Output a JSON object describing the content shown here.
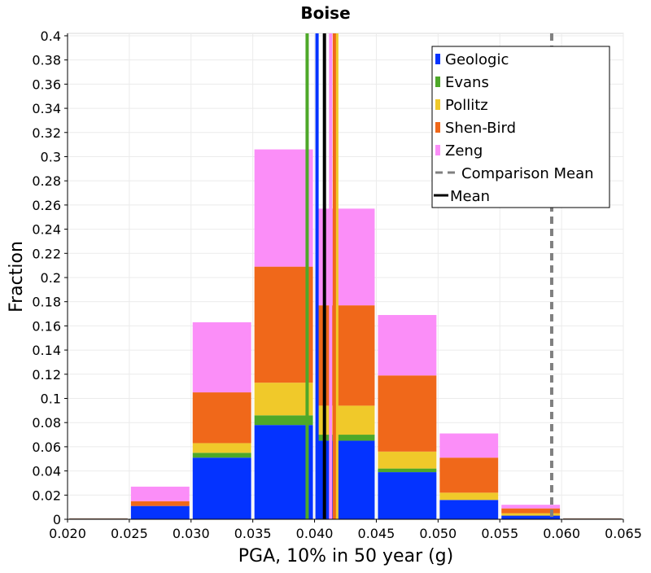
{
  "chart_data": {
    "type": "bar",
    "title": "Boise",
    "xlabel": "PGA, 10% in 50 year (g)",
    "ylabel": "Fraction",
    "xlim": [
      0.02,
      0.065
    ],
    "ylim": [
      0,
      0.402
    ],
    "x_ticks": [
      "0.020",
      "0.025",
      "0.030",
      "0.035",
      "0.040",
      "0.045",
      "0.050",
      "0.055",
      "0.060",
      "0.065"
    ],
    "y_ticks": [
      "0",
      "0.02",
      "0.04",
      "0.06",
      "0.08",
      "0.1",
      "0.12",
      "0.14",
      "0.16",
      "0.18",
      "0.2",
      "0.22",
      "0.24",
      "0.26",
      "0.28",
      "0.3",
      "0.32",
      "0.34",
      "0.36",
      "0.38",
      "0.4"
    ],
    "grid": true,
    "stacked": true,
    "legend_position": "top-right",
    "bins": [
      {
        "start": 0.02,
        "end": 0.025
      },
      {
        "start": 0.025,
        "end": 0.03
      },
      {
        "start": 0.03,
        "end": 0.035
      },
      {
        "start": 0.035,
        "end": 0.04
      },
      {
        "start": 0.04,
        "end": 0.045
      },
      {
        "start": 0.045,
        "end": 0.05
      },
      {
        "start": 0.05,
        "end": 0.055
      },
      {
        "start": 0.055,
        "end": 0.06
      },
      {
        "start": 0.06,
        "end": 0.065
      }
    ],
    "series": [
      {
        "name": "Geologic",
        "color": "#0433ff",
        "values": [
          0,
          0.011,
          0.051,
          0.078,
          0.065,
          0.039,
          0.016,
          0.003,
          0
        ]
      },
      {
        "name": "Evans",
        "color": "#4ea829",
        "values": [
          0,
          0,
          0.004,
          0.008,
          0.005,
          0.003,
          0,
          0,
          0
        ]
      },
      {
        "name": "Pollitz",
        "color": "#f0c92a",
        "values": [
          0,
          0,
          0.008,
          0.027,
          0.024,
          0.014,
          0.006,
          0.002,
          0
        ]
      },
      {
        "name": "Shen-Bird",
        "color": "#f0681a",
        "values": [
          0,
          0.004,
          0.042,
          0.096,
          0.083,
          0.063,
          0.029,
          0.004,
          0
        ]
      },
      {
        "name": "Zeng",
        "color": "#fb8ef8",
        "values": [
          0,
          0.012,
          0.058,
          0.097,
          0.08,
          0.05,
          0.02,
          0.003,
          0
        ]
      }
    ],
    "vertical_lines": [
      {
        "series": "Evans",
        "x": 0.0394,
        "color": "#4ea829"
      },
      {
        "series": "Geologic",
        "x": 0.0402,
        "color": "#0433ff"
      },
      {
        "series": "Pollitz",
        "x": 0.0418,
        "color": "#f0c92a"
      },
      {
        "series": "Shen-Bird",
        "x": 0.0416,
        "color": "#f0681a"
      },
      {
        "series": "Zeng",
        "x": 0.0413,
        "color": "#fb8ef8"
      },
      {
        "series": "Mean",
        "x": 0.0408,
        "color": "#000000"
      },
      {
        "series": "Comparison Mean",
        "x": 0.0592,
        "color": "#808080",
        "dashed": true
      }
    ],
    "legend": [
      {
        "label": "Geologic",
        "color": "#0433ff",
        "kind": "box"
      },
      {
        "label": "Evans",
        "color": "#4ea829",
        "kind": "box"
      },
      {
        "label": "Pollitz",
        "color": "#f0c92a",
        "kind": "box"
      },
      {
        "label": "Shen-Bird",
        "color": "#f0681a",
        "kind": "box"
      },
      {
        "label": "Zeng",
        "color": "#fb8ef8",
        "kind": "box"
      },
      {
        "label": "Comparison Mean",
        "color": "#808080",
        "kind": "dashed"
      },
      {
        "label": "Mean",
        "color": "#000000",
        "kind": "line"
      }
    ]
  }
}
